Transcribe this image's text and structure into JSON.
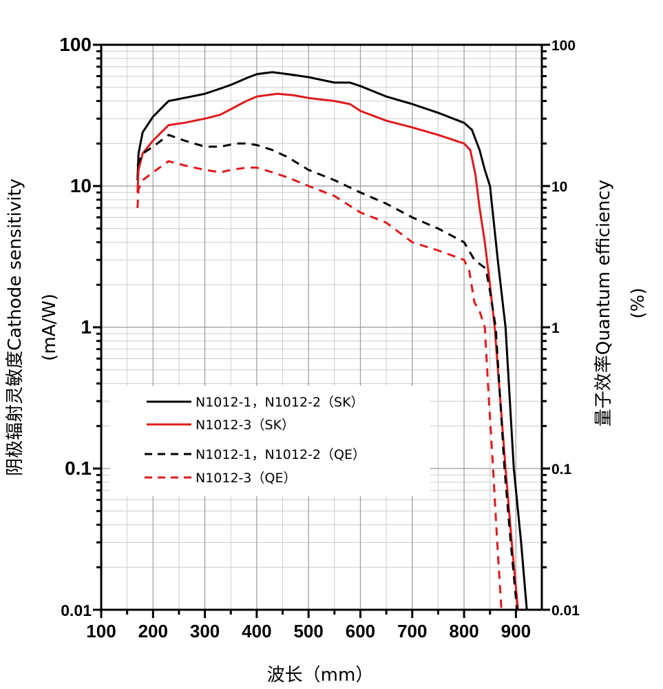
{
  "chart_data": {
    "type": "line",
    "title": "",
    "xlabel": "波长（mm）",
    "ylabel_left": [
      "阴极辐射灵敏度Cathode sensitivity",
      "(mA/W)"
    ],
    "ylabel_right": [
      "量子效率Quantum efficiency",
      "(%)"
    ],
    "xlim": [
      100,
      950
    ],
    "ylim": [
      0.01,
      100
    ],
    "yscale": "log",
    "grid": true,
    "xticks": [
      "100",
      "200",
      "300",
      "400",
      "500",
      "600",
      "700",
      "800",
      "900"
    ],
    "yticks_left": [
      "100",
      "10",
      "1",
      "0.1",
      "0.01"
    ],
    "yticks_right": [
      "100",
      "10",
      "1",
      "0.1",
      "0.01"
    ],
    "legend_position": "lower-left",
    "series": [
      {
        "name": "N1012-1，N1012-2（SK）",
        "color": "#000000",
        "dash": false,
        "x": [
          170,
          172,
          180,
          200,
          230,
          260,
          300,
          330,
          350,
          380,
          400,
          430,
          460,
          500,
          550,
          580,
          600,
          650,
          700,
          750,
          800,
          815,
          830,
          840,
          850,
          865,
          880,
          896,
          910,
          921
        ],
        "y": [
          11,
          17,
          24,
          31,
          40,
          42,
          45,
          49,
          52,
          58,
          62,
          64,
          62,
          59,
          54,
          54,
          51,
          43,
          38,
          33,
          28,
          25,
          18,
          13,
          10,
          3,
          1,
          0.1,
          0.03,
          0.01
        ]
      },
      {
        "name": "N1012-3（SK）",
        "color": "#e0191b",
        "dash": false,
        "x": [
          170,
          172,
          180,
          200,
          230,
          260,
          300,
          330,
          350,
          380,
          400,
          440,
          470,
          500,
          550,
          580,
          600,
          650,
          700,
          750,
          800,
          812,
          822,
          830,
          840,
          850,
          859,
          870,
          880,
          892,
          904
        ],
        "y": [
          9,
          13,
          17,
          21,
          27,
          28,
          30,
          32,
          35,
          40,
          43,
          45,
          44,
          42,
          40,
          38,
          34,
          29,
          26,
          23,
          20,
          18,
          12,
          7,
          4,
          2,
          1,
          0.3,
          0.1,
          0.03,
          0.01
        ]
      },
      {
        "name": "N1012-1，N1012-2（QE）",
        "color": "#000000",
        "dash": true,
        "x": [
          170,
          180,
          200,
          230,
          260,
          300,
          330,
          360,
          380,
          400,
          430,
          460,
          500,
          550,
          600,
          650,
          700,
          750,
          800,
          820,
          842,
          850,
          861,
          878,
          890,
          902
        ],
        "y": [
          14,
          17,
          19,
          23,
          21,
          19,
          19,
          20,
          20,
          19.5,
          18,
          16,
          13,
          11,
          9,
          7.5,
          6,
          5,
          4,
          3,
          2.6,
          1.8,
          1,
          0.1,
          0.03,
          0.01
        ]
      },
      {
        "name": "N1012-3（QE）",
        "color": "#e0191b",
        "dash": true,
        "x": [
          170,
          172,
          180,
          200,
          230,
          260,
          300,
          330,
          350,
          380,
          400,
          430,
          460,
          500,
          550,
          600,
          650,
          700,
          750,
          800,
          810,
          820,
          830,
          840,
          848,
          856,
          864,
          872
        ],
        "y": [
          7,
          9.5,
          11,
          12.5,
          15,
          14,
          13,
          12.5,
          13,
          13.5,
          13.5,
          12.5,
          11.5,
          10,
          8.5,
          6.5,
          5.5,
          4,
          3.5,
          3,
          2.5,
          1.5,
          1.3,
          1,
          0.3,
          0.1,
          0.03,
          0.01
        ]
      }
    ]
  }
}
